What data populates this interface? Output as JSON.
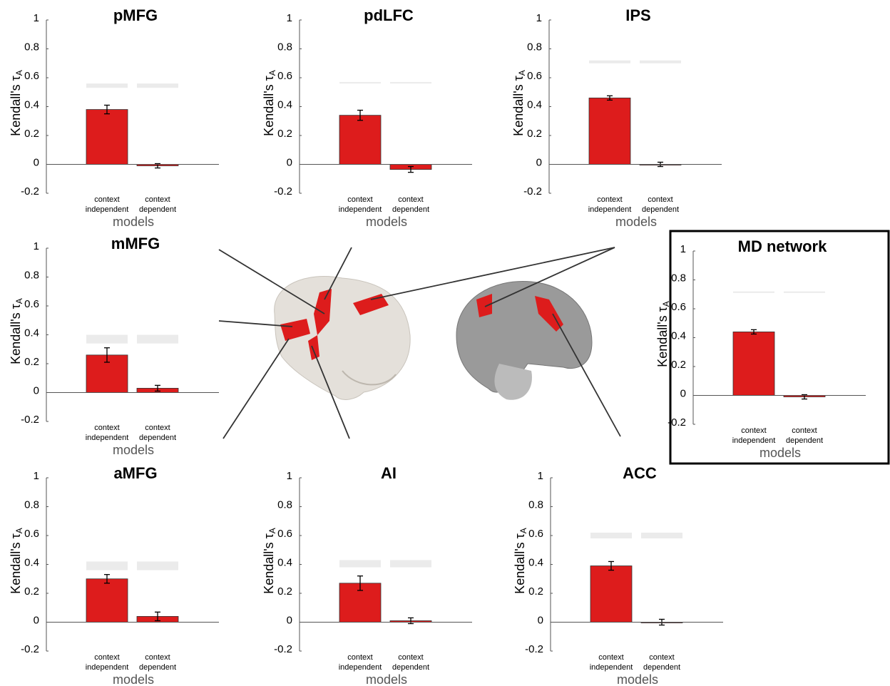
{
  "chart_data": [
    {
      "type": "bar",
      "title": "pMFG",
      "ylabel": "Kendall's τ",
      "ylabel_subscript": "A",
      "xlabel": "models",
      "categories": [
        "context independent",
        "context dependent"
      ],
      "values": [
        0.38,
        -0.01
      ],
      "errors": [
        0.03,
        0.015
      ],
      "ceiling_lower": [
        0.53,
        0.53
      ],
      "ceiling_upper": [
        0.56,
        0.56
      ],
      "color": "#dd1c1c",
      "ceiling_color": "#ebebeb",
      "ylim": [
        -0.2,
        1
      ],
      "yticks": [
        -0.2,
        0,
        0.2,
        0.4,
        0.6,
        0.8,
        1
      ]
    },
    {
      "type": "bar",
      "title": "pdLFC",
      "ylabel": "Kendall's τ",
      "ylabel_subscript": "A",
      "xlabel": "models",
      "categories": [
        "context independent",
        "context dependent"
      ],
      "values": [
        0.34,
        -0.035
      ],
      "errors": [
        0.035,
        0.02
      ],
      "ceiling_lower": [
        0.56,
        0.56
      ],
      "ceiling_upper": [
        0.57,
        0.57
      ],
      "color": "#dd1c1c",
      "ceiling_color": "#ebebeb",
      "ylim": [
        -0.2,
        1
      ],
      "yticks": [
        -0.2,
        0,
        0.2,
        0.4,
        0.6,
        0.8,
        1
      ]
    },
    {
      "type": "bar",
      "title": "IPS",
      "ylabel": "Kendall's τ",
      "ylabel_subscript": "A",
      "xlabel": "models",
      "categories": [
        "context independent",
        "context dependent"
      ],
      "values": [
        0.46,
        0.0
      ],
      "errors": [
        0.015,
        0.015
      ],
      "ceiling_lower": [
        0.7,
        0.7
      ],
      "ceiling_upper": [
        0.72,
        0.72
      ],
      "color": "#dd1c1c",
      "ceiling_color": "#ebebeb",
      "ylim": [
        -0.2,
        1
      ],
      "yticks": [
        -0.2,
        0,
        0.2,
        0.4,
        0.6,
        0.8,
        1
      ]
    },
    {
      "type": "bar",
      "title": "mMFG",
      "ylabel": "Kendall's τ",
      "ylabel_subscript": "A",
      "xlabel": "models",
      "categories": [
        "context independent",
        "context dependent"
      ],
      "values": [
        0.26,
        0.03
      ],
      "errors": [
        0.05,
        0.02
      ],
      "ceiling_lower": [
        0.34,
        0.34
      ],
      "ceiling_upper": [
        0.4,
        0.4
      ],
      "color": "#dd1c1c",
      "ceiling_color": "#ebebeb",
      "ylim": [
        -0.2,
        1
      ],
      "yticks": [
        -0.2,
        0,
        0.2,
        0.4,
        0.6,
        0.8,
        1
      ]
    },
    {
      "type": "bar",
      "title": "MD network",
      "ylabel": "Kendall's τ",
      "ylabel_subscript": "A",
      "xlabel": "models",
      "categories": [
        "context independent",
        "context dependent"
      ],
      "values": [
        0.44,
        -0.01
      ],
      "errors": [
        0.015,
        0.015
      ],
      "ceiling_lower": [
        0.71,
        0.71
      ],
      "ceiling_upper": [
        0.72,
        0.72
      ],
      "color": "#dd1c1c",
      "ceiling_color": "#ebebeb",
      "ylim": [
        -0.2,
        1
      ],
      "yticks": [
        -0.2,
        0,
        0.2,
        0.4,
        0.6,
        0.8,
        1
      ]
    },
    {
      "type": "bar",
      "title": "aMFG",
      "ylabel": "Kendall's τ",
      "ylabel_subscript": "A",
      "xlabel": "models",
      "categories": [
        "context independent",
        "context dependent"
      ],
      "values": [
        0.3,
        0.04
      ],
      "errors": [
        0.03,
        0.03
      ],
      "ceiling_lower": [
        0.36,
        0.36
      ],
      "ceiling_upper": [
        0.42,
        0.42
      ],
      "color": "#dd1c1c",
      "ceiling_color": "#ebebeb",
      "ylim": [
        -0.2,
        1
      ],
      "yticks": [
        -0.2,
        0,
        0.2,
        0.4,
        0.6,
        0.8,
        1
      ]
    },
    {
      "type": "bar",
      "title": "AI",
      "ylabel": "Kendall's τ",
      "ylabel_subscript": "A",
      "xlabel": "models",
      "categories": [
        "context independent",
        "context dependent"
      ],
      "values": [
        0.27,
        0.01
      ],
      "errors": [
        0.05,
        0.02
      ],
      "ceiling_lower": [
        0.38,
        0.38
      ],
      "ceiling_upper": [
        0.43,
        0.43
      ],
      "color": "#dd1c1c",
      "ceiling_color": "#ebebeb",
      "ylim": [
        -0.2,
        1
      ],
      "yticks": [
        -0.2,
        0,
        0.2,
        0.4,
        0.6,
        0.8,
        1
      ]
    },
    {
      "type": "bar",
      "title": "ACC",
      "ylabel": "Kendall's τ",
      "ylabel_subscript": "A",
      "xlabel": "models",
      "categories": [
        "context independent",
        "context dependent"
      ],
      "values": [
        0.39,
        0.0
      ],
      "errors": [
        0.03,
        0.02
      ],
      "ceiling_lower": [
        0.58,
        0.58
      ],
      "ceiling_upper": [
        0.62,
        0.62
      ],
      "color": "#dd1c1c",
      "ceiling_color": "#ebebeb",
      "ylim": [
        -0.2,
        1
      ],
      "yticks": [
        -0.2,
        0,
        0.2,
        0.4,
        0.6,
        0.8,
        1
      ]
    }
  ]
}
